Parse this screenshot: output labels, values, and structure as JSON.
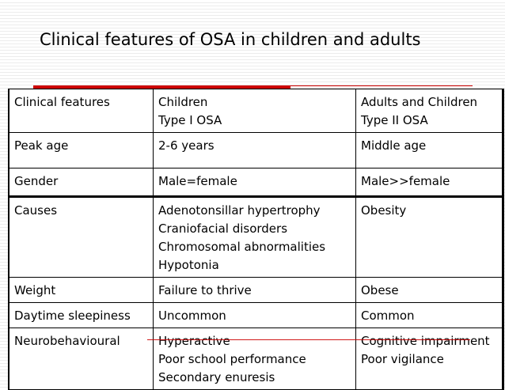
{
  "title": "Clinical features of OSA in children and adults",
  "colors": {
    "accent_red": "#cc0000",
    "text": "#000000"
  },
  "table": {
    "header": {
      "col1": [
        "Clinical features"
      ],
      "col2": [
        "Children",
        "Type I OSA"
      ],
      "col3": [
        "Adults and Children",
        "Type II OSA"
      ]
    },
    "rows": [
      {
        "feature": "Peak age",
        "children": [
          "2-6 years"
        ],
        "adults": [
          "Middle age"
        ]
      },
      {
        "feature": "Gender",
        "children": [
          "Male=female"
        ],
        "adults": [
          "Male>>female"
        ]
      },
      {
        "feature": "Causes",
        "children": [
          "Adenotonsillar hypertrophy",
          "Craniofacial disorders",
          "Chromosomal abnormalities",
          "Hypotonia"
        ],
        "adults": [
          "Obesity"
        ]
      },
      {
        "feature": "Weight",
        "children": [
          "Failure to thrive"
        ],
        "adults": [
          "Obese"
        ]
      },
      {
        "feature": "Daytime sleepiness",
        "children": [
          "Uncommon"
        ],
        "adults": [
          "Common"
        ]
      },
      {
        "feature": "Neurobehavioural",
        "children": [
          "Hyperactive",
          "Poor school performance",
          "Secondary enuresis"
        ],
        "adults": [
          "Cognitive impairment",
          "Poor vigilance"
        ]
      }
    ]
  }
}
